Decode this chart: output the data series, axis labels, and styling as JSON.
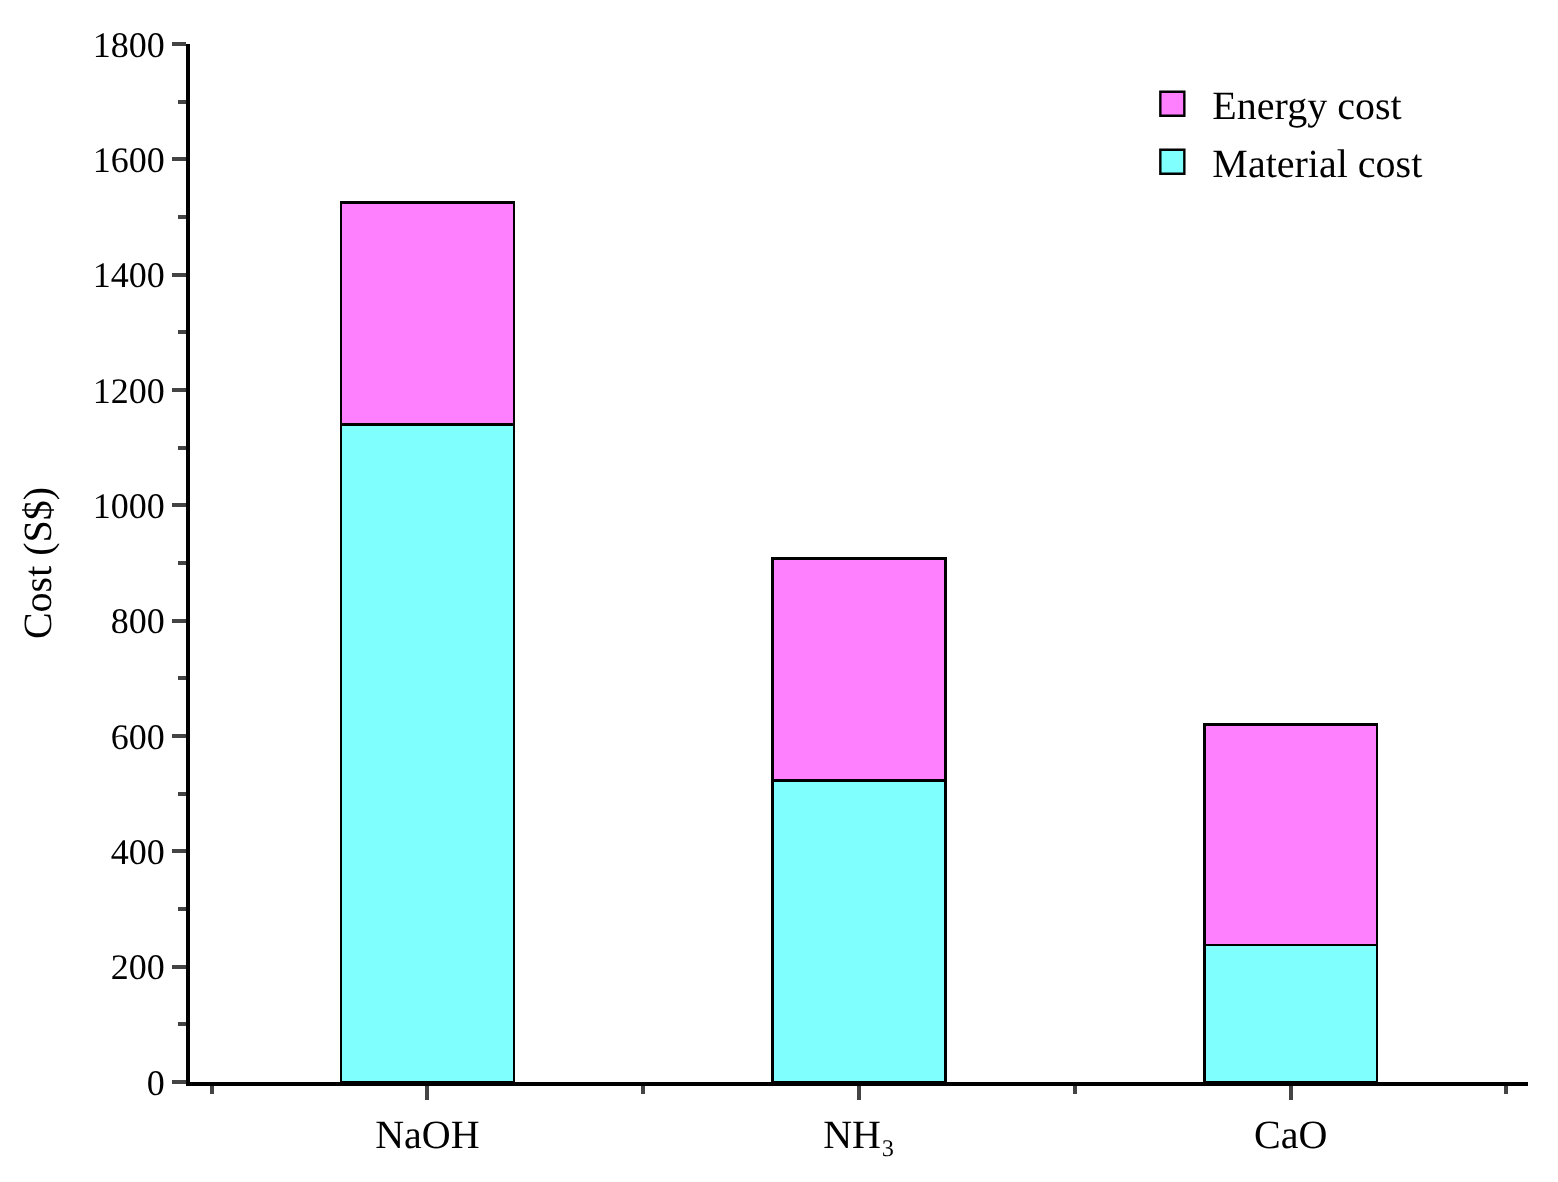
{
  "chart_data": {
    "type": "bar",
    "stacked": true,
    "ylabel": "Cost (S$)",
    "categories": [
      "NaOH",
      "NH₃",
      "CaO"
    ],
    "series": [
      {
        "name": "Material cost",
        "color": "#80ffff",
        "values": [
          1140,
          523,
          238
        ]
      },
      {
        "name": "Energy cost",
        "color": "#ff80ff",
        "values": [
          385,
          385,
          382
        ]
      }
    ],
    "ylim": [
      0,
      1800
    ],
    "yticks": [
      0,
      200,
      400,
      600,
      800,
      1000,
      1200,
      1400,
      1600,
      1800
    ],
    "legend": "top right"
  }
}
